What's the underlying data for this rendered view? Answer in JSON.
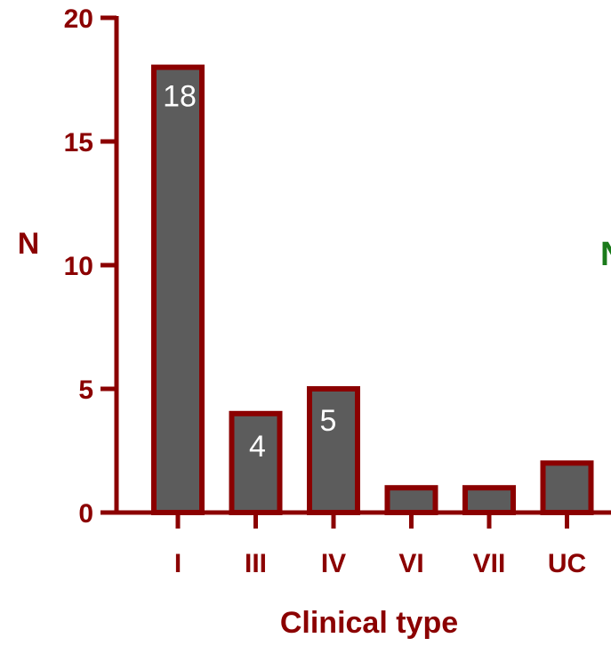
{
  "chart_data": {
    "type": "bar",
    "categories": [
      "I",
      "III",
      "IV",
      "VI",
      "VII",
      "UC"
    ],
    "values": [
      18,
      4,
      5,
      1,
      1,
      2
    ],
    "data_labels": [
      "18",
      "4",
      "5",
      "",
      "",
      ""
    ],
    "title": "",
    "xlabel": "Clinical type",
    "ylabel": "N",
    "ylim": [
      0,
      20
    ],
    "yticks": [
      0,
      5,
      10,
      15,
      20
    ],
    "ytick_labels": [
      "0",
      "5",
      "10",
      "15",
      "20"
    ],
    "grid": false,
    "legend": "none",
    "colors": {
      "bar_fill": "#5c5c5c",
      "bar_edge": "#8b0000",
      "axis": "#8b0000",
      "data_label": "#ffffff",
      "clipped_text": "#1a7a1a"
    },
    "clipped_text": "N"
  }
}
